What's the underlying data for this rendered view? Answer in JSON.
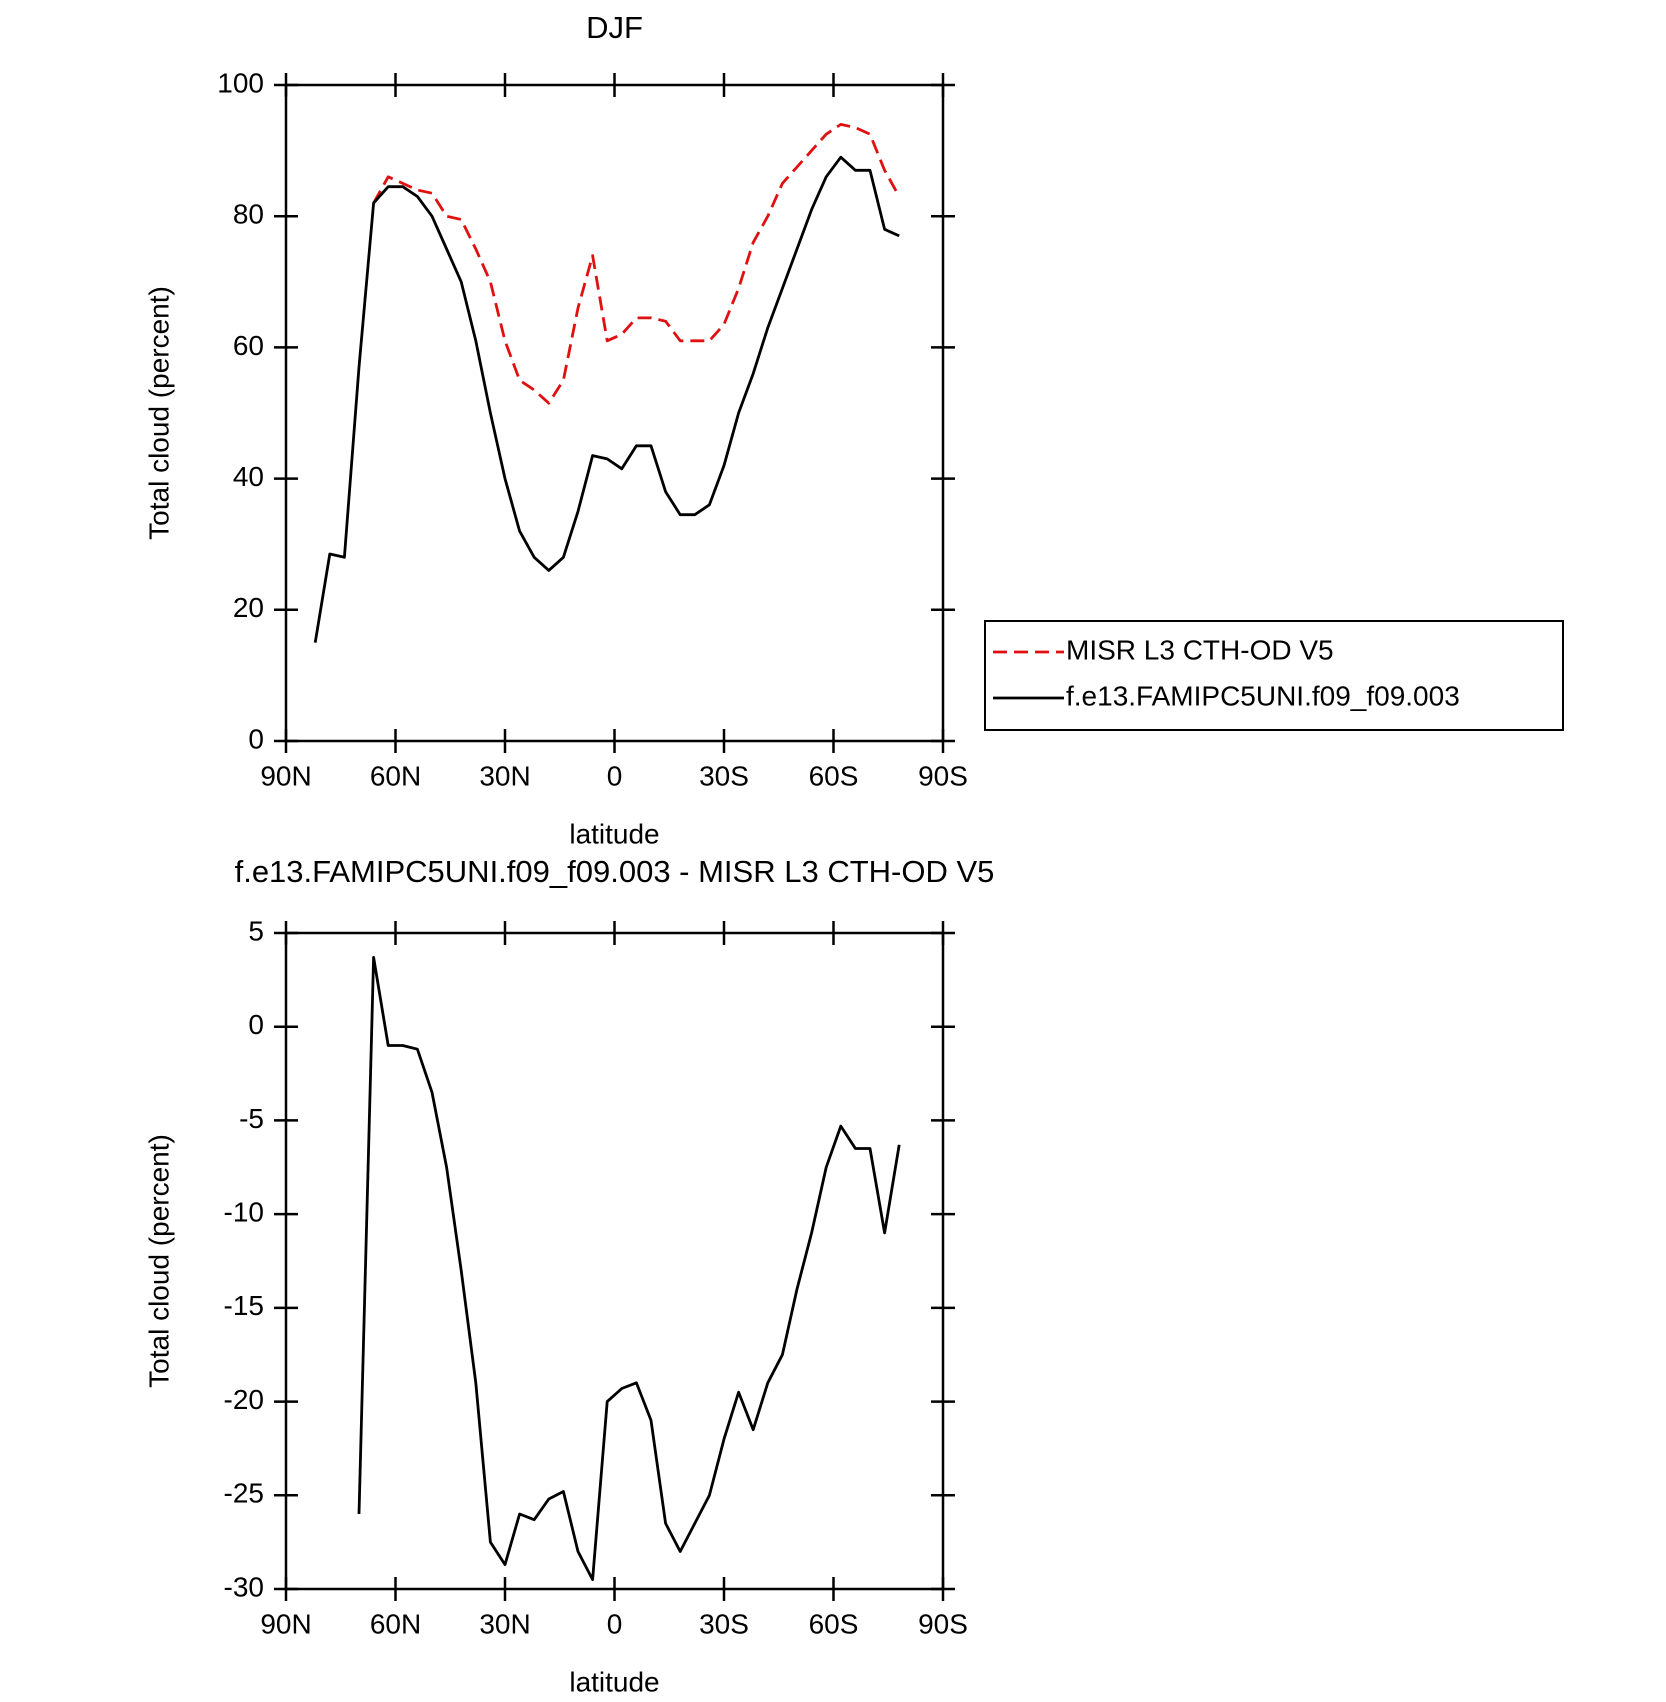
{
  "chart_data": [
    {
      "type": "line",
      "title": "DJF",
      "x_label": "latitude",
      "y_label": "Total cloud (percent)",
      "x": [
        82,
        78,
        74,
        70,
        66,
        62,
        58,
        54,
        50,
        46,
        42,
        38,
        34,
        30,
        26,
        22,
        18,
        14,
        10,
        6,
        2,
        -2,
        -6,
        -10,
        -14,
        -18,
        -22,
        -26,
        -30,
        -34,
        -38,
        -42,
        -46,
        -50,
        -54,
        -58,
        -62,
        -66,
        -70,
        -74,
        -78
      ],
      "xlim": [
        90,
        -90
      ],
      "xticks": [
        {
          "value": 90,
          "label": "90N"
        },
        {
          "value": 60,
          "label": "60N"
        },
        {
          "value": 30,
          "label": "30N"
        },
        0,
        {
          "value": -30,
          "label": "30S"
        },
        {
          "value": -60,
          "label": "60S"
        },
        {
          "value": -90,
          "label": "90S"
        }
      ],
      "ylim": [
        0,
        100
      ],
      "yticks": [
        0,
        20,
        40,
        60,
        80,
        100
      ],
      "series": [
        {
          "name": "MISR L3 CTH-OD V5",
          "color": "#e01010",
          "line_style": "dashed",
          "values": [
            null,
            null,
            null,
            null,
            82,
            86,
            85,
            84,
            83.5,
            80,
            79.5,
            75,
            70,
            61,
            55,
            53.5,
            51.5,
            55,
            66,
            74,
            61,
            62,
            64.5,
            64.5,
            64,
            61,
            61,
            61,
            63.5,
            69,
            76,
            80,
            85,
            87.5,
            90,
            92.5,
            94,
            93.5,
            92.5,
            87,
            83
          ]
        },
        {
          "name": "f.e13.FAMIPC5UNI.f09_f09.003",
          "color": "#000000",
          "line_style": "solid",
          "values": [
            15,
            28.5,
            28,
            57,
            82,
            84.5,
            84.5,
            83,
            80,
            75,
            70,
            61,
            50,
            40,
            32,
            28,
            26,
            28,
            35,
            43.5,
            43,
            41.5,
            45,
            45,
            38,
            34.5,
            34.5,
            36,
            42,
            50,
            56,
            63,
            69,
            75,
            81,
            86,
            89,
            87,
            87,
            78,
            77
          ]
        }
      ]
    },
    {
      "type": "line",
      "title": "f.e13.FAMIPC5UNI.f09_f09.003 - MISR L3 CTH-OD V5",
      "x_label": "latitude",
      "y_label": "Total cloud (percent)",
      "x": [
        82,
        78,
        74,
        70,
        66,
        62,
        58,
        54,
        50,
        46,
        42,
        38,
        34,
        30,
        26,
        22,
        18,
        14,
        10,
        6,
        2,
        -2,
        -6,
        -10,
        -14,
        -18,
        -22,
        -26,
        -30,
        -34,
        -38,
        -42,
        -46,
        -50,
        -54,
        -58,
        -62,
        -66,
        -70,
        -74,
        -78
      ],
      "xlim": [
        90,
        -90
      ],
      "xticks": [
        {
          "value": 90,
          "label": "90N"
        },
        {
          "value": 60,
          "label": "60N"
        },
        {
          "value": 30,
          "label": "30N"
        },
        0,
        {
          "value": -30,
          "label": "30S"
        },
        {
          "value": -60,
          "label": "60S"
        },
        {
          "value": -90,
          "label": "90S"
        }
      ],
      "ylim": [
        -30,
        5
      ],
      "yticks": [
        -30,
        -25,
        -20,
        -15,
        -10,
        -5,
        0,
        5
      ],
      "series": [
        {
          "color": "#000000",
          "line_style": "solid",
          "values": [
            null,
            null,
            null,
            -26,
            3.7,
            -1,
            -1,
            -1.2,
            -3.5,
            -7.5,
            -13,
            -19,
            -27.5,
            -28.7,
            -26,
            -26.3,
            -25.2,
            -24.8,
            -28,
            -29.5,
            -20,
            -19.3,
            -19,
            -21,
            -26.5,
            -28,
            -26.5,
            -25,
            -22,
            -19.5,
            -21.5,
            -19,
            -17.5,
            -14,
            -11,
            -7.5,
            -5.3,
            -6.5,
            -6.5,
            -11,
            -6.3
          ]
        }
      ]
    }
  ]
}
